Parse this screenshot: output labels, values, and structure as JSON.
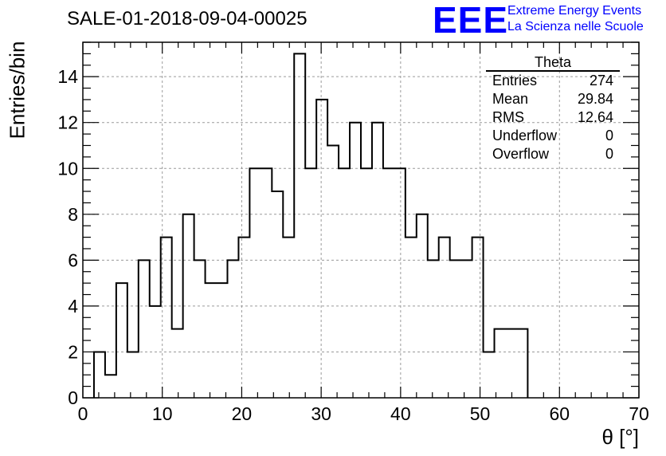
{
  "header": {
    "title": "SALE-01-2018-09-04-00025",
    "logo": "EEE",
    "logo_line1": "Extreme Energy Events",
    "logo_line2": "La Scienza nelle Scuole"
  },
  "stats_box": {
    "title": "Theta",
    "rows": [
      {
        "label": "Entries",
        "value": "274"
      },
      {
        "label": "Mean",
        "value": "29.84"
      },
      {
        "label": "RMS",
        "value": "12.64"
      },
      {
        "label": "Underflow",
        "value": "0"
      },
      {
        "label": "Overflow",
        "value": "0"
      }
    ]
  },
  "chart_data": {
    "type": "bar",
    "title": "SALE-01-2018-09-04-00025",
    "xlabel": "θ [°]",
    "ylabel": "Entries/bin",
    "xlim": [
      0,
      70
    ],
    "ylim": [
      0,
      15.5
    ],
    "grid": true,
    "xticks": [
      0,
      10,
      20,
      30,
      40,
      50,
      60,
      70
    ],
    "yticks": [
      0,
      2,
      4,
      6,
      8,
      10,
      12,
      14
    ],
    "bin_width": 1.4,
    "bin_start": 1.4,
    "values": [
      2,
      1,
      5,
      2,
      6,
      4,
      7,
      3,
      8,
      6,
      5,
      5,
      6,
      7,
      10,
      10,
      9,
      7,
      15,
      10,
      13,
      11,
      10,
      12,
      10,
      12,
      10,
      10,
      7,
      8,
      6,
      7,
      6,
      6,
      7,
      2,
      3,
      3,
      3
    ],
    "color": "#000000"
  }
}
